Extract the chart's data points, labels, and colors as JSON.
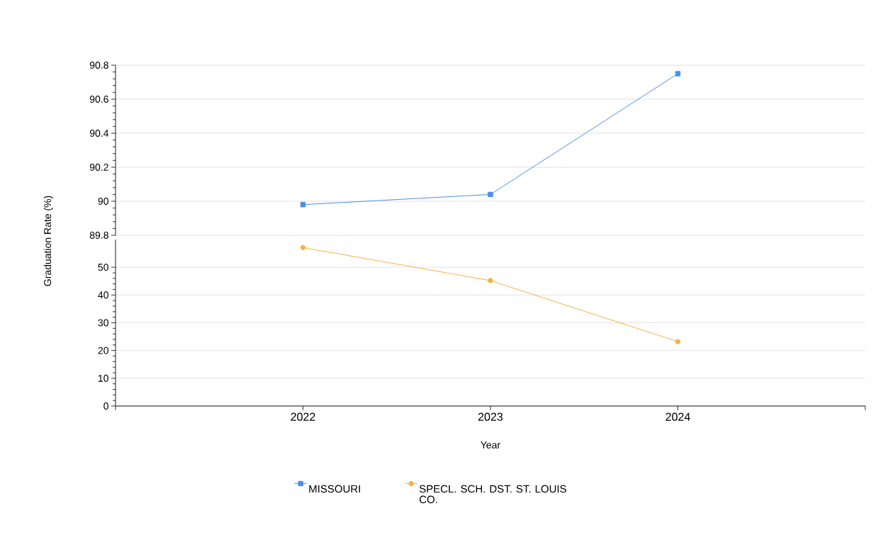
{
  "chart_data": [
    {
      "type": "line",
      "ylabel": "Graduation Rate (%)",
      "x": [
        2022,
        2023,
        2024
      ],
      "xlim": [
        2021,
        2025
      ],
      "ylim": [
        89.8,
        90.8
      ],
      "yticks": [
        89.8,
        90,
        90.2,
        90.4,
        90.6,
        90.8
      ],
      "tick_labels": "y",
      "grid": "y",
      "legend": "bottom",
      "series": [
        {
          "name": "MISSOURI",
          "color": "#4a8fe7",
          "marker": "square",
          "values": [
            89.98,
            90.04,
            90.75
          ]
        }
      ]
    },
    {
      "type": "line",
      "xlabel": "Year",
      "x": [
        2022,
        2023,
        2024
      ],
      "xlim": [
        2021,
        2025
      ],
      "xticks": [
        {
          "value": 2021,
          "label": null
        },
        2022,
        2023,
        2024,
        {
          "value": 2025,
          "label": null
        }
      ],
      "ylim": [
        0,
        60
      ],
      "yticks": [
        0,
        10,
        20,
        30,
        40,
        50
      ],
      "grid": "y",
      "legend": "bottom",
      "series": [
        {
          "name": "SPECL. SCH. DST. ST. LOUIS CO.",
          "color": "#f9b040",
          "marker": "circle",
          "values": [
            57.1,
            45.2,
            23.2
          ]
        }
      ]
    }
  ]
}
